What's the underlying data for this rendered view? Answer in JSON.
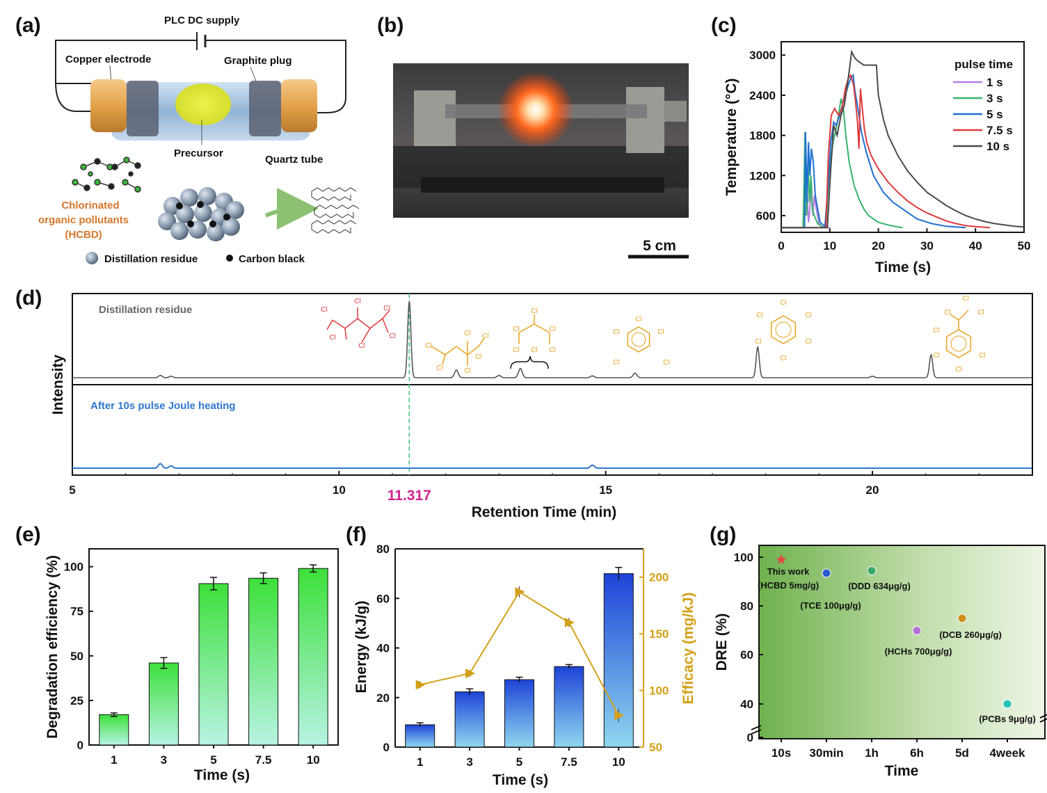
{
  "panels": {
    "a": "(a)",
    "b": "(b)",
    "c": "(c)",
    "d": "(d)",
    "e": "(e)",
    "f": "(f)",
    "g": "(g)"
  },
  "schematic": {
    "plc": "PLC DC supply",
    "copper": "Copper electrode",
    "graphite": "Graphite plug",
    "precursor": "Precursor",
    "quartz": "Quartz tube",
    "pollutant_line1": "Chlorinated",
    "pollutant_line2": "organic pollutants",
    "pollutant_line3": "(HCBD)",
    "legend_residue": "Distillation residue",
    "legend_carbon": "Carbon black",
    "colors": {
      "pollutant": "#d4762c",
      "copper": "#e4a24a",
      "precursor": "#e2e83a"
    }
  },
  "photo": {
    "scale_label": "5 cm"
  },
  "chem": {
    "cl": "Cl"
  },
  "chart_data": [
    {
      "id": "c",
      "type": "line",
      "ylabel": "Temperature (°C)",
      "xlabel": "Time (s)",
      "xlim": [
        0,
        50
      ],
      "ylim": [
        350,
        3200
      ],
      "xticks": [
        "0",
        "10",
        "20",
        "30",
        "40",
        "50"
      ],
      "yticks": [
        "600",
        "1200",
        "1800",
        "2400",
        "3000"
      ],
      "legend_title": "pulse time",
      "series": [
        {
          "name": "1 s",
          "color": "#b27fe0",
          "x": [
            0,
            4.5,
            4.7,
            5,
            5.3,
            5.6,
            5.9,
            6.2,
            6.5,
            6.8,
            7.2,
            7.8,
            8.5,
            10
          ],
          "y": [
            420,
            420,
            800,
            600,
            1000,
            500,
            700,
            1100,
            600,
            900,
            700,
            480,
            430,
            420
          ]
        },
        {
          "name": "3 s",
          "color": "#36b56b",
          "x": [
            0,
            4.5,
            4.9,
            5.2,
            5.5,
            5.8,
            6.1,
            6.4,
            6.8,
            7.5,
            8.5,
            9.2,
            9.8,
            10.3,
            10.8,
            11.2,
            11.8,
            12.3,
            12.8,
            13.3,
            14,
            15,
            16,
            17,
            18,
            20,
            22,
            24,
            25
          ],
          "y": [
            420,
            420,
            1850,
            600,
            1400,
            800,
            1200,
            700,
            600,
            480,
            430,
            430,
            1200,
            1500,
            1750,
            1850,
            2100,
            2350,
            2200,
            1800,
            1400,
            1050,
            850,
            700,
            600,
            500,
            460,
            430,
            420
          ]
        },
        {
          "name": "5 s",
          "color": "#1f6fd1",
          "x": [
            0,
            4.8,
            5,
            5.3,
            5.6,
            5.9,
            6.2,
            6.6,
            7,
            8,
            9,
            9.8,
            10.2,
            10.8,
            11.3,
            12,
            12.6,
            13.2,
            13.8,
            14.3,
            14.8,
            15.2,
            15.8,
            16.5,
            17.5,
            19,
            21,
            23,
            25,
            28,
            31,
            34,
            37,
            38
          ],
          "y": [
            420,
            420,
            1850,
            800,
            1700,
            1200,
            1600,
            1400,
            900,
            500,
            440,
            1200,
            1700,
            2000,
            1950,
            2100,
            2250,
            2400,
            2550,
            2650,
            2700,
            2450,
            2200,
            1850,
            1550,
            1200,
            950,
            800,
            700,
            550,
            480,
            440,
            425,
            420
          ]
        },
        {
          "name": "7.5 s",
          "color": "#e0393c",
          "x": [
            0,
            9.2,
            9.7,
            10.3,
            11,
            11.8,
            12.5,
            13.2,
            13.8,
            14.3,
            14.9,
            15.3,
            15.7,
            16,
            16.3,
            16.7,
            17.1,
            17.6,
            18.5,
            20,
            22,
            24,
            26,
            28,
            30,
            32,
            34,
            36,
            38,
            40,
            42,
            43
          ],
          "y": [
            420,
            420,
            1500,
            2100,
            2200,
            2100,
            2200,
            2500,
            2650,
            2700,
            2550,
            2300,
            2000,
            1600,
            2500,
            2200,
            1900,
            1700,
            1500,
            1300,
            1100,
            950,
            820,
            720,
            640,
            580,
            520,
            480,
            450,
            435,
            425,
            420
          ]
        },
        {
          "name": "10 s",
          "color": "#4a4a4a",
          "x": [
            0,
            9.5,
            10.2,
            10.8,
            11.5,
            12.3,
            13,
            13.8,
            14.5,
            15.2,
            16,
            17,
            18,
            19,
            19.6,
            20,
            21,
            22,
            24,
            26,
            28,
            30,
            32,
            34,
            36,
            38,
            40,
            42,
            44,
            46,
            48,
            50
          ],
          "y": [
            420,
            420,
            1300,
            1950,
            1800,
            2100,
            2250,
            2650,
            3050,
            2950,
            2900,
            2850,
            2850,
            2850,
            2850,
            2400,
            2050,
            1800,
            1500,
            1270,
            1100,
            950,
            850,
            750,
            670,
            600,
            550,
            510,
            480,
            460,
            440,
            430
          ]
        }
      ]
    },
    {
      "id": "d",
      "type": "line",
      "xlabel": "Retention Time (min)",
      "ylabel": "Intensity",
      "xlim": [
        5,
        23
      ],
      "xticks": [
        "5",
        "10",
        "15",
        "20"
      ],
      "marker_label": "11.317",
      "marker_x": 11.317,
      "series": [
        {
          "name": "Distillation residue",
          "color": "#555555",
          "peaks": [
            [
              6.65,
              0.03
            ],
            [
              6.85,
              0.02
            ],
            [
              11.317,
              1.0
            ],
            [
              12.2,
              0.1
            ],
            [
              13.0,
              0.03
            ],
            [
              13.4,
              0.12
            ],
            [
              14.75,
              0.025
            ],
            [
              15.55,
              0.06
            ],
            [
              17.85,
              0.4
            ],
            [
              20.0,
              0.02
            ],
            [
              21.1,
              0.3
            ]
          ]
        },
        {
          "name": "After 10s pulse Joule heating",
          "color": "#2f77cf",
          "peaks": [
            [
              6.65,
              0.06
            ],
            [
              6.85,
              0.03
            ],
            [
              14.75,
              0.04
            ]
          ]
        }
      ]
    },
    {
      "id": "e",
      "type": "bar",
      "ylabel": "Degradation efficiency (%)",
      "xlabel": "Time (s)",
      "categories": [
        "1",
        "3",
        "5",
        "7.5",
        "10"
      ],
      "values": [
        17,
        46,
        90.5,
        93.5,
        99
      ],
      "errors": [
        1,
        3,
        3.5,
        3,
        2
      ],
      "ylim": [
        0,
        110
      ],
      "yticks": [
        "0",
        "25",
        "50",
        "75",
        "100"
      ]
    },
    {
      "id": "f",
      "type": "bar+line",
      "ylabel": "Energy (kJ/g)",
      "y2label": "Efficacy (mg/kJ)",
      "xlabel": "Time (s)",
      "categories": [
        "1",
        "3",
        "5",
        "7.5",
        "10"
      ],
      "series": [
        {
          "name": "Energy",
          "values": [
            9,
            22.3,
            27.2,
            32.5,
            70
          ],
          "errors": [
            0.8,
            1.2,
            1,
            0.8,
            2.5
          ]
        },
        {
          "name": "Efficacy",
          "values": [
            105,
            115,
            187,
            160,
            78
          ],
          "errors": [
            3,
            3,
            5,
            4,
            6
          ]
        }
      ],
      "ylim": [
        0,
        80
      ],
      "yticks": [
        "0",
        "20",
        "40",
        "60",
        "80"
      ],
      "y2lim": [
        50,
        225
      ],
      "y2ticks": [
        "50",
        "100",
        "150",
        "200"
      ],
      "y2_color": "#d4a017"
    },
    {
      "id": "g",
      "type": "scatter",
      "ylabel": "DRE (%)",
      "xlabel": "Time",
      "categories": [
        "10s",
        "30min",
        "1h",
        "6h",
        "5d",
        "4week"
      ],
      "yticks": [
        "0",
        "40",
        "60",
        "80",
        "100"
      ],
      "points": [
        {
          "cat": 0,
          "y": 99,
          "label_line1": "This work",
          "label_line2": "(HCBD 5mg/g)",
          "color": "#e04848",
          "shape": "star"
        },
        {
          "cat": 1,
          "y": 93.5,
          "label_line1": "(TCE 100μg/g)",
          "color": "#2a5bd0",
          "shape": "circle"
        },
        {
          "cat": 2,
          "y": 94.5,
          "label_line1": "(DDD 634μg/g)",
          "color": "#33a867",
          "shape": "circle"
        },
        {
          "cat": 3,
          "y": 70,
          "label_line1": "(HCHs 700μg/g)",
          "color": "#b36fd8",
          "shape": "circle"
        },
        {
          "cat": 4,
          "y": 75,
          "label_line1": "(DCB 260μg/g)",
          "color": "#d18e1a",
          "shape": "circle"
        },
        {
          "cat": 5,
          "y": 40,
          "label_line1": "(PCBs 9μg/g)",
          "color": "#24c2b8",
          "shape": "circle"
        }
      ]
    }
  ]
}
